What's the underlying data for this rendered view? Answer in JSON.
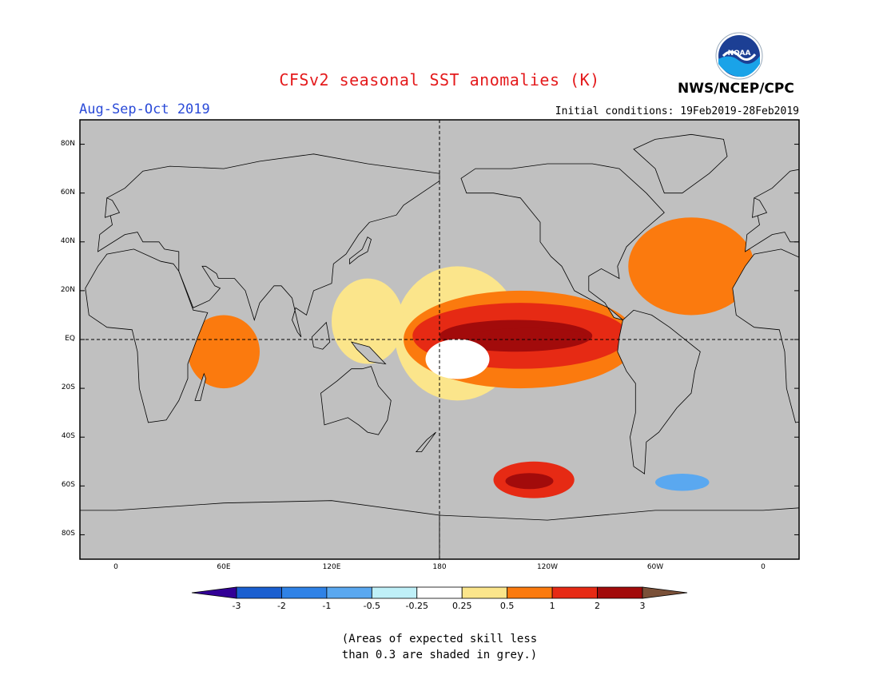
{
  "title": "CFSv2 seasonal SST anomalies (K)",
  "season": "Aug-Sep-Oct 2019",
  "initial_conditions": "Initial conditions: 19Feb2019-28Feb2019",
  "agency": "NWS/NCEP/CPC",
  "logo_text": "NOAA",
  "map": {
    "lat_labels": [
      "80N",
      "60N",
      "40N",
      "20N",
      "EQ",
      "20S",
      "40S",
      "60S",
      "80S"
    ],
    "lon_labels": [
      "0",
      "60E",
      "120E",
      "180",
      "120W",
      "60W",
      "0"
    ],
    "background_color": "#c0c0c0",
    "grid_style": "dashed"
  },
  "colorbar": {
    "tick_labels": [
      "-3",
      "-2",
      "-1",
      "-0.5",
      "-0.25",
      "0.25",
      "0.5",
      "1",
      "2",
      "3"
    ],
    "colors": [
      "#320096",
      "#1a5fd0",
      "#2f82e6",
      "#5aa8f0",
      "#bff0f8",
      "#ffffff",
      "#fbe58b",
      "#fb7a0e",
      "#e62a14",
      "#a20b0b",
      "#7a5038"
    ]
  },
  "note_line1": "(Areas of expected skill less",
  "note_line2": "than 0.3 are shaded in grey.)",
  "chart_data": {
    "type": "heatmap",
    "title": "CFSv2 seasonal SST anomalies (K)",
    "variable": "SST anomaly",
    "units": "K",
    "period": "Aug-Sep-Oct 2019",
    "lat_range": [
      -90,
      90
    ],
    "lon_range": [
      -20,
      380
    ],
    "levels": [
      -3,
      -2,
      -1,
      -0.5,
      -0.25,
      0.25,
      0.5,
      1,
      2,
      3
    ],
    "regions": [
      {
        "lon": [
          180,
          265
        ],
        "lat": [
          -5,
          8
        ],
        "level": "2 to 3"
      },
      {
        "lon": [
          165,
          285
        ],
        "lat": [
          -12,
          15
        ],
        "level": "1 to 2"
      },
      {
        "lon": [
          160,
          290
        ],
        "lat": [
          -20,
          20
        ],
        "level": "0.5 to 1"
      },
      {
        "lon": [
          155,
          225
        ],
        "lat": [
          -25,
          30
        ],
        "level": "0.25 to 0.5"
      },
      {
        "lon": [
          285,
          355
        ],
        "lat": [
          10,
          50
        ],
        "level": "0.5 to 1"
      },
      {
        "lon": [
          210,
          255
        ],
        "lat": [
          -65,
          -50
        ],
        "level": "1 to 3"
      },
      {
        "lon": [
          300,
          330
        ],
        "lat": [
          -62,
          -55
        ],
        "level": "-1 to -0.5"
      },
      {
        "lon": [
          40,
          80
        ],
        "lat": [
          -20,
          10
        ],
        "level": "0.5 to 1"
      },
      {
        "lon": [
          120,
          160
        ],
        "lat": [
          -10,
          25
        ],
        "level": "0.25 to 0.5"
      }
    ]
  }
}
